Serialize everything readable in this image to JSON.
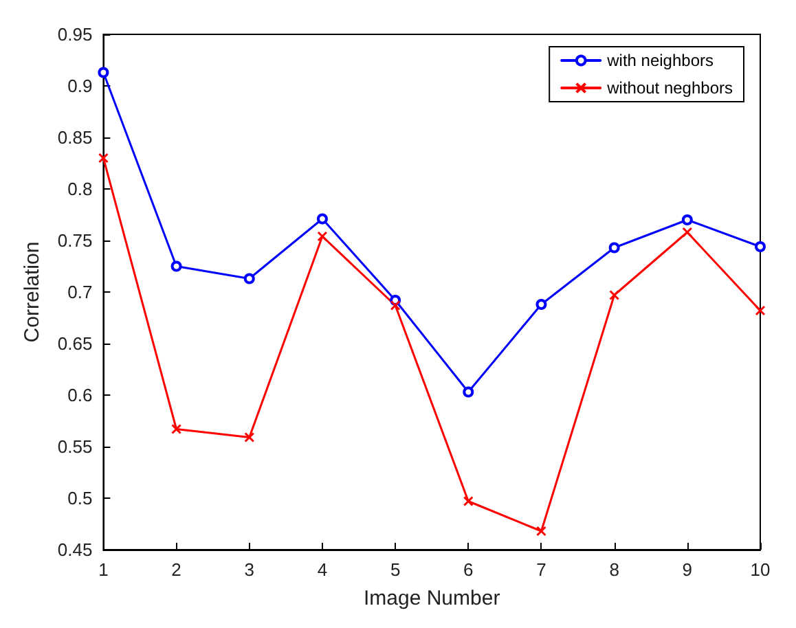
{
  "chart_data": {
    "type": "line",
    "xlabel": "Image Number",
    "ylabel": "Correlation",
    "x": [
      1,
      2,
      3,
      4,
      5,
      6,
      7,
      8,
      9,
      10
    ],
    "series": [
      {
        "name": "with neighbors",
        "color": "#0000ff",
        "marker": "circle",
        "values": [
          0.913,
          0.725,
          0.713,
          0.771,
          0.692,
          0.603,
          0.688,
          0.743,
          0.77,
          0.744
        ]
      },
      {
        "name": "without neghbors",
        "color": "#ff0000",
        "marker": "cross",
        "values": [
          0.83,
          0.567,
          0.559,
          0.754,
          0.687,
          0.497,
          0.468,
          0.697,
          0.758,
          0.682
        ]
      }
    ],
    "xlim": [
      1,
      10
    ],
    "xticks": [
      1,
      2,
      3,
      4,
      5,
      6,
      7,
      8,
      9,
      10
    ],
    "ylim": [
      0.45,
      0.95
    ],
    "yticks": [
      0.45,
      0.5,
      0.55,
      0.6,
      0.65,
      0.7,
      0.75,
      0.8,
      0.85,
      0.9,
      0.95
    ],
    "grid": false,
    "legend": "top right",
    "line_style": "solid"
  }
}
